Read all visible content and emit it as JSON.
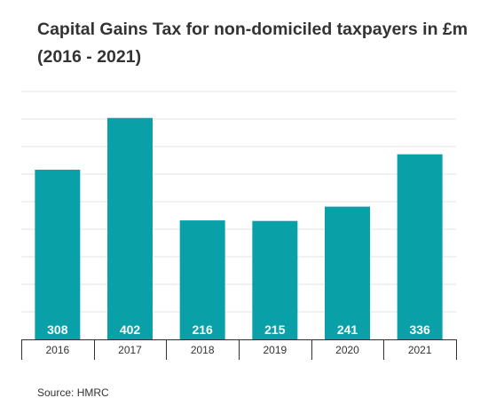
{
  "chart_data": {
    "type": "bar",
    "title": "Capital Gains Tax for non-domiciled taxpayers in £m (2016 - 2021)",
    "categories": [
      "2016",
      "2017",
      "2018",
      "2019",
      "2020",
      "2021"
    ],
    "values": [
      308,
      402,
      216,
      215,
      241,
      336
    ],
    "xlabel": "",
    "ylabel": "",
    "ylim": [
      0,
      450
    ],
    "grid": true,
    "legend": "none",
    "data_labels": "inside-bottom"
  },
  "source": "Source: HMRC",
  "colors": {
    "bar": "#0aa0a8",
    "grid": "#e3e3e3",
    "axis": "#333333",
    "label_text": "#ffffff",
    "text": "#333333"
  }
}
